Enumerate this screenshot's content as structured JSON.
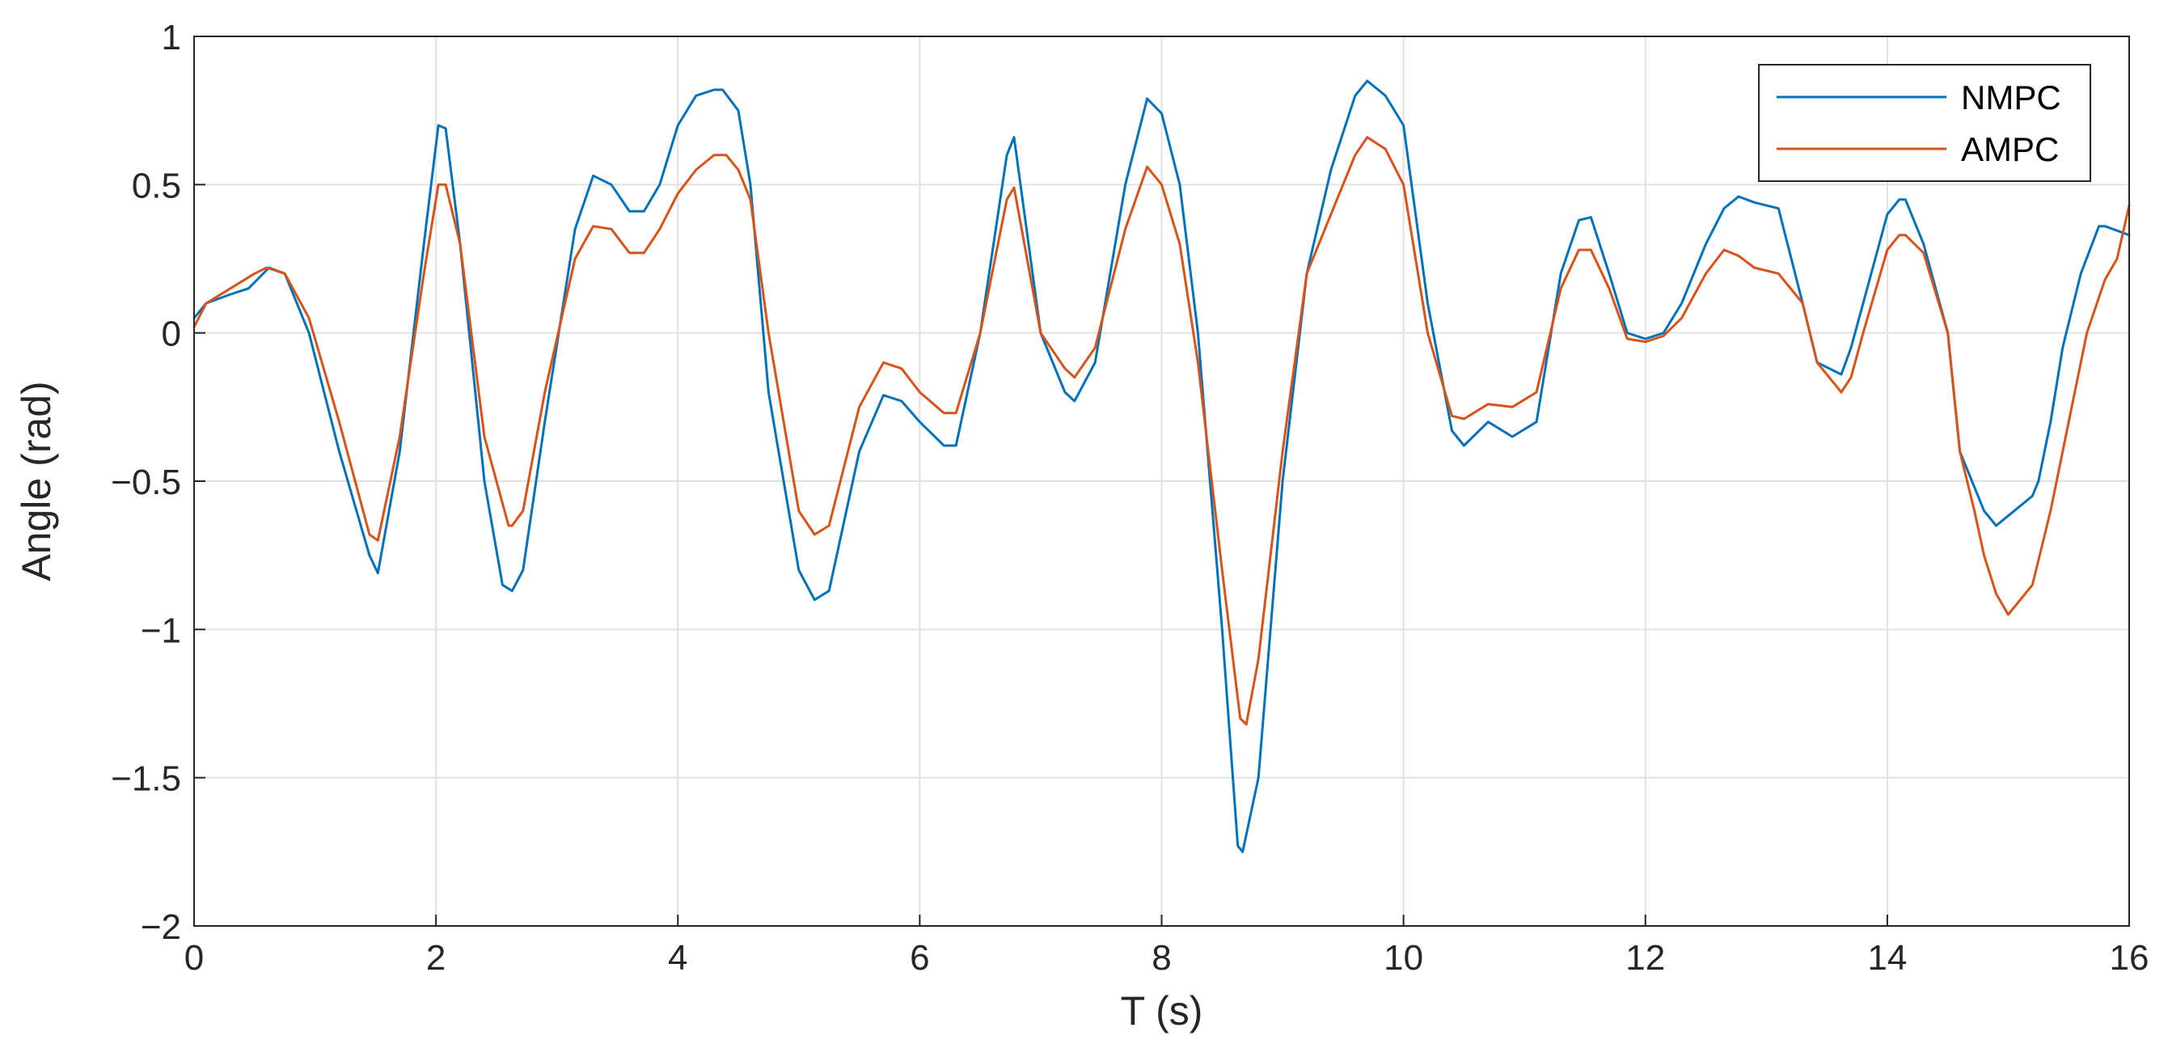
{
  "chart_data": {
    "type": "line",
    "title": "",
    "xlabel": "T (s)",
    "ylabel": "Angle (rad)",
    "xlim": [
      0,
      16
    ],
    "ylim": [
      -2,
      1
    ],
    "grid": true,
    "legend_position": "top-right",
    "x_ticks": [
      0,
      2,
      4,
      6,
      8,
      10,
      12,
      14,
      16
    ],
    "y_ticks": [
      1,
      0.5,
      0,
      -0.5,
      -1,
      -1.5,
      -2
    ],
    "x_tick_labels": [
      "0",
      "2",
      "4",
      "6",
      "8",
      "10",
      "12",
      "14",
      "16"
    ],
    "y_tick_labels": [
      "1",
      "0.5",
      "0",
      "−0.5",
      "−1",
      "−1.5",
      "−2"
    ],
    "series": [
      {
        "name": "NMPC",
        "color": "#0072BD",
        "x": [
          0,
          0.1,
          0.3,
          0.45,
          0.62,
          0.75,
          0.95,
          1.2,
          1.45,
          1.52,
          1.7,
          1.9,
          2.02,
          2.08,
          2.2,
          2.4,
          2.55,
          2.63,
          2.72,
          2.9,
          3.15,
          3.3,
          3.45,
          3.6,
          3.72,
          3.85,
          4.0,
          4.15,
          4.3,
          4.37,
          4.5,
          4.6,
          4.75,
          5.0,
          5.13,
          5.25,
          5.5,
          5.7,
          5.85,
          6.0,
          6.2,
          6.3,
          6.5,
          6.72,
          6.78,
          7.0,
          7.2,
          7.28,
          7.45,
          7.7,
          7.88,
          8.0,
          8.15,
          8.3,
          8.5,
          8.63,
          8.67,
          8.8,
          9.0,
          9.2,
          9.4,
          9.6,
          9.7,
          9.85,
          10.0,
          10.2,
          10.4,
          10.5,
          10.7,
          10.9,
          11.1,
          11.3,
          11.45,
          11.55,
          11.7,
          11.85,
          12.0,
          12.15,
          12.3,
          12.5,
          12.65,
          12.77,
          12.9,
          13.1,
          13.3,
          13.42,
          13.62,
          13.7,
          13.8,
          14.0,
          14.1,
          14.15,
          14.3,
          14.5,
          14.6,
          14.72,
          14.8,
          14.9,
          15.2,
          15.25,
          15.35,
          15.45,
          15.6,
          15.75,
          15.8,
          16.0
        ],
        "values": [
          0.05,
          0.1,
          0.13,
          0.15,
          0.22,
          0.2,
          0.0,
          -0.4,
          -0.75,
          -0.81,
          -0.4,
          0.3,
          0.7,
          0.69,
          0.3,
          -0.5,
          -0.85,
          -0.87,
          -0.8,
          -0.3,
          0.35,
          0.53,
          0.5,
          0.41,
          0.41,
          0.5,
          0.7,
          0.8,
          0.82,
          0.82,
          0.75,
          0.5,
          -0.2,
          -0.8,
          -0.9,
          -0.87,
          -0.4,
          -0.21,
          -0.23,
          -0.3,
          -0.38,
          -0.38,
          0.0,
          0.6,
          0.66,
          0.0,
          -0.2,
          -0.23,
          -0.1,
          0.5,
          0.79,
          0.74,
          0.5,
          0.0,
          -1.0,
          -1.73,
          -1.75,
          -1.5,
          -0.5,
          0.2,
          0.55,
          0.8,
          0.85,
          0.8,
          0.7,
          0.1,
          -0.33,
          -0.38,
          -0.3,
          -0.35,
          -0.3,
          0.2,
          0.38,
          0.39,
          0.2,
          0.0,
          -0.02,
          0.0,
          0.1,
          0.3,
          0.42,
          0.46,
          0.44,
          0.42,
          0.1,
          -0.1,
          -0.14,
          -0.05,
          0.1,
          0.4,
          0.45,
          0.45,
          0.3,
          0.0,
          -0.4,
          -0.52,
          -0.6,
          -0.65,
          -0.55,
          -0.5,
          -0.3,
          -0.05,
          0.2,
          0.36,
          0.36,
          0.33
        ]
      },
      {
        "name": "AMPC",
        "color": "#D95319",
        "x": [
          0,
          0.1,
          0.3,
          0.5,
          0.6,
          0.75,
          0.95,
          1.2,
          1.45,
          1.52,
          1.7,
          1.9,
          2.02,
          2.08,
          2.2,
          2.4,
          2.6,
          2.63,
          2.72,
          2.9,
          3.15,
          3.3,
          3.45,
          3.6,
          3.72,
          3.85,
          4.0,
          4.15,
          4.3,
          4.4,
          4.5,
          4.6,
          4.75,
          5.0,
          5.13,
          5.25,
          5.5,
          5.7,
          5.85,
          6.0,
          6.2,
          6.3,
          6.5,
          6.72,
          6.78,
          7.0,
          7.2,
          7.28,
          7.45,
          7.7,
          7.88,
          8.0,
          8.15,
          8.3,
          8.5,
          8.65,
          8.7,
          8.8,
          9.0,
          9.2,
          9.4,
          9.6,
          9.7,
          9.85,
          10.0,
          10.2,
          10.4,
          10.5,
          10.7,
          10.9,
          11.1,
          11.3,
          11.45,
          11.55,
          11.7,
          11.85,
          12.0,
          12.15,
          12.3,
          12.5,
          12.65,
          12.77,
          12.9,
          13.1,
          13.3,
          13.42,
          13.62,
          13.7,
          13.8,
          14.0,
          14.1,
          14.15,
          14.3,
          14.5,
          14.6,
          14.72,
          14.8,
          14.9,
          15.0,
          15.2,
          15.35,
          15.5,
          15.65,
          15.8,
          15.9,
          16.0
        ],
        "values": [
          0.02,
          0.1,
          0.15,
          0.2,
          0.22,
          0.2,
          0.05,
          -0.3,
          -0.68,
          -0.7,
          -0.35,
          0.2,
          0.5,
          0.5,
          0.3,
          -0.35,
          -0.65,
          -0.65,
          -0.6,
          -0.2,
          0.25,
          0.36,
          0.35,
          0.27,
          0.27,
          0.35,
          0.47,
          0.55,
          0.6,
          0.6,
          0.55,
          0.45,
          0.0,
          -0.6,
          -0.68,
          -0.65,
          -0.25,
          -0.1,
          -0.12,
          -0.2,
          -0.27,
          -0.27,
          0.0,
          0.45,
          0.49,
          0.0,
          -0.12,
          -0.15,
          -0.05,
          0.35,
          0.56,
          0.5,
          0.3,
          -0.1,
          -0.8,
          -1.3,
          -1.32,
          -1.1,
          -0.4,
          0.2,
          0.4,
          0.6,
          0.66,
          0.62,
          0.5,
          0.0,
          -0.28,
          -0.29,
          -0.24,
          -0.25,
          -0.2,
          0.15,
          0.28,
          0.28,
          0.15,
          -0.02,
          -0.03,
          -0.01,
          0.05,
          0.2,
          0.28,
          0.26,
          0.22,
          0.2,
          0.1,
          -0.1,
          -0.2,
          -0.15,
          0.0,
          0.28,
          0.33,
          0.33,
          0.27,
          0.0,
          -0.4,
          -0.6,
          -0.75,
          -0.88,
          -0.95,
          -0.85,
          -0.6,
          -0.3,
          0.0,
          0.18,
          0.25,
          0.43
        ]
      }
    ]
  }
}
